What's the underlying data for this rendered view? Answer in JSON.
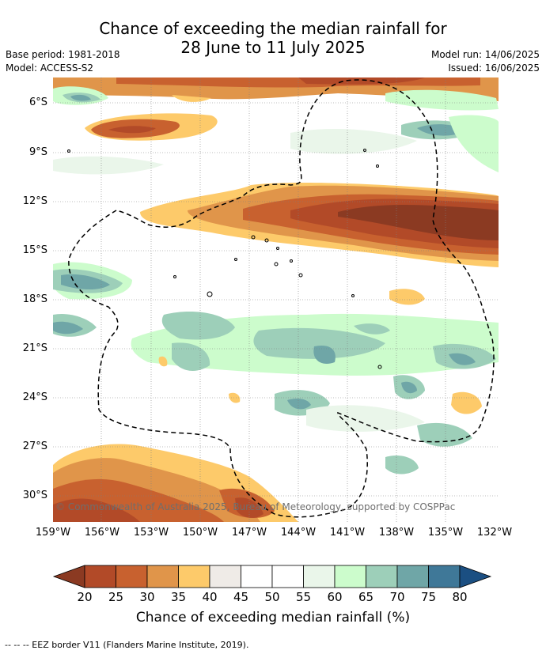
{
  "title": {
    "line1": "Chance of exceeding the median rainfall for",
    "line2": "28 June to 11 July 2025"
  },
  "meta": {
    "base_period": "Base period: 1981-2018",
    "model": "Model: ACCESS-S2",
    "model_run": "Model run: 14/06/2025",
    "issued": "Issued: 16/06/2025"
  },
  "axes": {
    "lat_labels": [
      "6°S",
      "9°S",
      "12°S",
      "15°S",
      "18°S",
      "21°S",
      "24°S",
      "27°S",
      "30°S"
    ],
    "lon_labels": [
      "159°W",
      "156°W",
      "153°W",
      "150°W",
      "147°W",
      "144°W",
      "141°W",
      "138°W",
      "135°W",
      "132°W"
    ]
  },
  "copyright": "© Commonwealth of Australia 2025, Bureau of Meteorology, supported by COSPPac",
  "colorbar": {
    "ticks": [
      "20",
      "25",
      "30",
      "35",
      "40",
      "45",
      "50",
      "55",
      "60",
      "65",
      "70",
      "75",
      "80"
    ],
    "colors": {
      "low_extend": "#8b3a22",
      "bins": [
        "#b24a28",
        "#c8612f",
        "#e0954a",
        "#fdca6a",
        "#efebe7",
        "#ffffff",
        "#ffffff",
        "#eaf6ea",
        "#ccfccc",
        "#9dcfb9",
        "#6fa6a7",
        "#3f7898"
      ],
      "high_extend": "#1b4f82"
    },
    "title": "Chance of exceeding median rainfall (%)"
  },
  "footer": "--  --  -- EEZ border V11 (Flanders Marine Institute, 2019)."
}
